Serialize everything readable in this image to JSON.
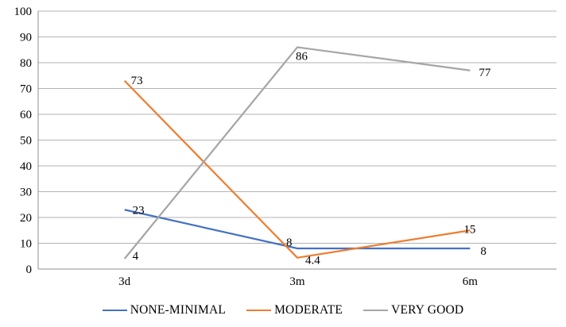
{
  "chart_data": {
    "type": "line",
    "title": "",
    "categories": [
      "3d",
      "3m",
      "6m"
    ],
    "series": [
      {
        "name": "NONE-MINIMAL",
        "color": "#4472C4",
        "values": [
          23,
          8,
          8
        ],
        "labels": [
          "23",
          "8",
          "8"
        ]
      },
      {
        "name": "MODERATE",
        "color": "#ED7D31",
        "values": [
          73,
          4.4,
          15
        ],
        "labels": [
          "73",
          "4.4",
          "15"
        ]
      },
      {
        "name": "VERY GOOD",
        "color": "#A5A5A5",
        "values": [
          4,
          86,
          77
        ],
        "labels": [
          "4",
          "86",
          "77"
        ]
      }
    ],
    "xlabel": "",
    "ylabel": "",
    "ylim": [
      0,
      100
    ],
    "yticks": [
      0,
      10,
      20,
      30,
      40,
      50,
      60,
      70,
      80,
      90,
      100
    ],
    "grid": "horizontal",
    "legend_position": "bottom",
    "gridline_color": "#B3B3B3",
    "axis_color": "#8F8F8F",
    "text_color": "#000000"
  }
}
